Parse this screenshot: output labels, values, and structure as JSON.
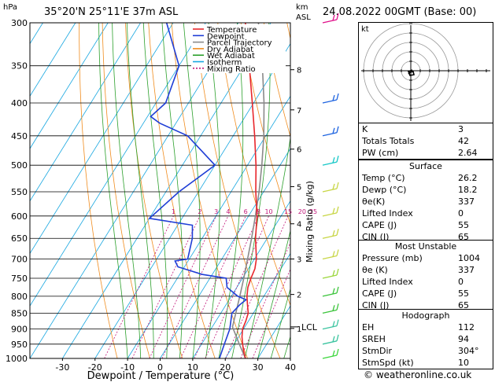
{
  "header": {
    "hpa_label": "hPa",
    "location": "35°20'N  25°11'E  37m  ASL",
    "km_label": "km",
    "asl_label": "ASL",
    "datetime": "24.08.2022  00GMT  (Base: 00)"
  },
  "chart_data": {
    "type": "skew-t",
    "xlabel": "Dewpoint / Temperature (°C)",
    "ylabel_right": "Mixing Ratio (g/kg)",
    "pressure_levels": [
      300,
      350,
      400,
      450,
      500,
      550,
      600,
      650,
      700,
      750,
      800,
      850,
      900,
      950,
      1000
    ],
    "temperature_ticks": [
      -30,
      -20,
      -10,
      0,
      10,
      20,
      30,
      40
    ],
    "mixing_ratio_labels": [
      "1",
      "2",
      "3",
      "4",
      "6",
      "8",
      "10",
      "15",
      "20",
      "25"
    ],
    "km_ticks": [
      {
        "label": "8",
        "p": 355
      },
      {
        "label": "7",
        "p": 410
      },
      {
        "label": "6",
        "p": 472
      },
      {
        "label": "5",
        "p": 540
      },
      {
        "label": "4",
        "p": 617
      },
      {
        "label": "3",
        "p": 700
      },
      {
        "label": "2",
        "p": 795
      },
      {
        "label": "1",
        "p": 898
      }
    ],
    "lcl": {
      "label": "LCL",
      "p": 893
    },
    "legend": [
      {
        "name": "Temperature",
        "color": "#e8262c"
      },
      {
        "name": "Dewpoint",
        "color": "#1f3ed6"
      },
      {
        "name": "Parcel Trajectory",
        "color": "#8a8a8a"
      },
      {
        "name": "Dry Adiabat",
        "color": "#f08c1e"
      },
      {
        "name": "Wet Adiabat",
        "color": "#2ca02c"
      },
      {
        "name": "Isotherm",
        "color": "#16a6e0"
      },
      {
        "name": "Mixing Ratio",
        "color": "#c2187a"
      }
    ],
    "temperature_profile": [
      {
        "p": 1000,
        "t": 26.2
      },
      {
        "p": 975,
        "t": 24.3
      },
      {
        "p": 950,
        "t": 22.6
      },
      {
        "p": 925,
        "t": 21.0
      },
      {
        "p": 900,
        "t": 19.7
      },
      {
        "p": 875,
        "t": 19.2
      },
      {
        "p": 850,
        "t": 18.4
      },
      {
        "p": 825,
        "t": 16.6
      },
      {
        "p": 800,
        "t": 14.8
      },
      {
        "p": 775,
        "t": 13.4
      },
      {
        "p": 750,
        "t": 12.6
      },
      {
        "p": 725,
        "t": 12.0
      },
      {
        "p": 700,
        "t": 10.6
      },
      {
        "p": 650,
        "t": 6.4
      },
      {
        "p": 600,
        "t": 2.6
      },
      {
        "p": 550,
        "t": -2.4
      },
      {
        "p": 500,
        "t": -7.4
      },
      {
        "p": 450,
        "t": -13.4
      },
      {
        "p": 400,
        "t": -20.4
      },
      {
        "p": 350,
        "t": -28.4
      },
      {
        "p": 300,
        "t": -37.8
      }
    ],
    "dewpoint_profile": [
      {
        "p": 1000,
        "t": 18.2
      },
      {
        "p": 950,
        "t": 17.0
      },
      {
        "p": 900,
        "t": 15.8
      },
      {
        "p": 850,
        "t": 13.4
      },
      {
        "p": 825,
        "t": 14.2
      },
      {
        "p": 810,
        "t": 15.2
      },
      {
        "p": 800,
        "t": 12.0
      },
      {
        "p": 775,
        "t": 7.0
      },
      {
        "p": 750,
        "t": 5.0
      },
      {
        "p": 740,
        "t": -3.0
      },
      {
        "p": 720,
        "t": -12.0
      },
      {
        "p": 705,
        "t": -14.0
      },
      {
        "p": 700,
        "t": -10.5
      },
      {
        "p": 650,
        "t": -13.0
      },
      {
        "p": 620,
        "t": -15.5
      },
      {
        "p": 605,
        "t": -30.0
      },
      {
        "p": 550,
        "t": -26.0
      },
      {
        "p": 500,
        "t": -20.0
      },
      {
        "p": 450,
        "t": -34.0
      },
      {
        "p": 430,
        "t": -45.0
      },
      {
        "p": 420,
        "t": -49.0
      },
      {
        "p": 400,
        "t": -47.0
      },
      {
        "p": 350,
        "t": -50.0
      },
      {
        "p": 300,
        "t": -62.0
      }
    ],
    "parcel_profile": [
      {
        "p": 1000,
        "t": 26.2
      },
      {
        "p": 950,
        "t": 21.6
      },
      {
        "p": 893,
        "t": 16.2
      },
      {
        "p": 850,
        "t": 14.6
      },
      {
        "p": 800,
        "t": 12.6
      },
      {
        "p": 750,
        "t": 10.4
      },
      {
        "p": 700,
        "t": 7.9
      },
      {
        "p": 650,
        "t": 5.2
      },
      {
        "p": 600,
        "t": 2.1
      },
      {
        "p": 550,
        "t": -1.4
      },
      {
        "p": 500,
        "t": -5.6
      },
      {
        "p": 450,
        "t": -10.6
      },
      {
        "p": 400,
        "t": -16.8
      },
      {
        "p": 350,
        "t": -24.4
      },
      {
        "p": 300,
        "t": -33.8
      }
    ]
  },
  "hodograph": {
    "label": "kt"
  },
  "indices": [
    {
      "name": "K",
      "value": "3"
    },
    {
      "name": "Totals Totals",
      "value": "42"
    },
    {
      "name": "PW (cm)",
      "value": "2.64"
    }
  ],
  "surface": {
    "title": "Surface",
    "rows": [
      {
        "name": "Temp (°C)",
        "value": "26.2"
      },
      {
        "name": "Dewp (°C)",
        "value": "18.2"
      },
      {
        "name": "θe(K)",
        "value": "337"
      },
      {
        "name": "Lifted Index",
        "value": "0"
      },
      {
        "name": "CAPE (J)",
        "value": "55"
      },
      {
        "name": "CIN (J)",
        "value": "65"
      }
    ]
  },
  "most_unstable": {
    "title": "Most Unstable",
    "rows": [
      {
        "name": "Pressure (mb)",
        "value": "1004"
      },
      {
        "name": "θe (K)",
        "value": "337"
      },
      {
        "name": "Lifted Index",
        "value": "0"
      },
      {
        "name": "CAPE (J)",
        "value": "55"
      },
      {
        "name": "CIN (J)",
        "value": "65"
      }
    ]
  },
  "hodograph_table": {
    "title": "Hodograph",
    "rows": [
      {
        "name": "EH",
        "value": "112"
      },
      {
        "name": "SREH",
        "value": "94"
      },
      {
        "name": "StmDir",
        "value": "304°"
      },
      {
        "name": "StmSpd (kt)",
        "value": "10"
      }
    ]
  },
  "footer": {
    "copyright": "© weatheronline.co.uk"
  }
}
